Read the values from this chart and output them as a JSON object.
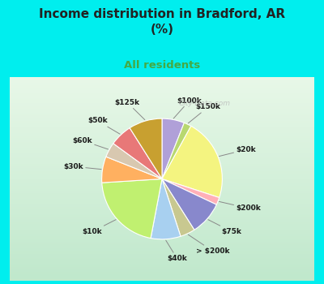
{
  "title": "Income distribution in Bradford, AR\n(%)",
  "subtitle": "All residents",
  "title_color": "#222222",
  "subtitle_color": "#44aa44",
  "background_color": "#00eeee",
  "chart_bg_start": "#f0faf0",
  "chart_bg_end": "#c8ecd0",
  "labels": [
    "$100k",
    "$150k",
    "$20k",
    "$200k",
    "$75k",
    "> $200k",
    "$40k",
    "$10k",
    "$30k",
    "$60k",
    "$50k",
    "$125k"
  ],
  "values": [
    6,
    2,
    22,
    2,
    9,
    4,
    8,
    21,
    7,
    4,
    6,
    9
  ],
  "colors": [
    "#b0a0d8",
    "#b8d870",
    "#f4f480",
    "#ffb0b8",
    "#8888cc",
    "#c8c890",
    "#a8d0f0",
    "#c0f070",
    "#ffb060",
    "#d8c8b0",
    "#e87878",
    "#c8a030"
  ],
  "watermark": "City-Data.com"
}
